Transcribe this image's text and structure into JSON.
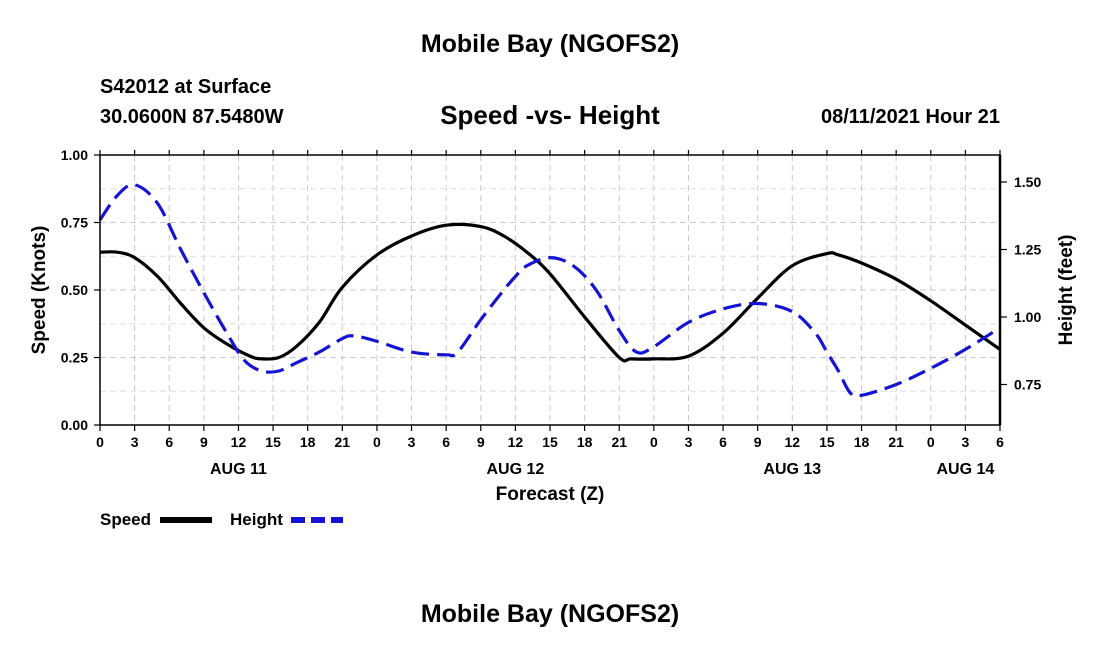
{
  "header": {
    "model_title": "Mobile Bay (NGOFS2)",
    "station": "S42012 at Surface",
    "coords": "30.0600N  87.5480W",
    "chart_title": "Speed -vs- Height",
    "datetime": "08/11/2021 Hour 21"
  },
  "footer": {
    "model_title": "Mobile Bay (NGOFS2)"
  },
  "chart_data": {
    "type": "line",
    "title": "Speed -vs- Height",
    "xlabel": "Forecast (Z)",
    "ylabel": "Speed (Knots)",
    "y2label": "Height (feet)",
    "xlim": [
      0,
      78
    ],
    "ylim": [
      0,
      1.0
    ],
    "y2lim": [
      0.6,
      1.6
    ],
    "x_ticks": [
      0,
      3,
      6,
      9,
      12,
      15,
      18,
      21,
      24,
      27,
      30,
      33,
      36,
      39,
      42,
      45,
      48,
      51,
      54,
      57,
      60,
      63,
      66,
      69,
      72,
      75,
      78
    ],
    "x_tick_labels": [
      "0",
      "3",
      "6",
      "9",
      "12",
      "15",
      "18",
      "21",
      "0",
      "3",
      "6",
      "9",
      "12",
      "15",
      "18",
      "21",
      "0",
      "3",
      "6",
      "9",
      "12",
      "15",
      "18",
      "21",
      "0",
      "3",
      "6"
    ],
    "y_ticks": [
      0,
      0.25,
      0.5,
      0.75,
      1.0
    ],
    "y_tick_labels": [
      "0.00",
      "0.25",
      "0.50",
      "0.75",
      "1.00"
    ],
    "y2_ticks": [
      0.75,
      1.0,
      1.25,
      1.5
    ],
    "y2_tick_labels": [
      "0.75",
      "1.00",
      "1.25",
      "1.50"
    ],
    "date_labels": [
      {
        "x": 12,
        "label": "AUG 11"
      },
      {
        "x": 36,
        "label": "AUG 12"
      },
      {
        "x": 60,
        "label": "AUG 13"
      },
      {
        "x": 75,
        "label": "AUG 14"
      }
    ],
    "grid": true,
    "legend_position": "bottom-left",
    "series": [
      {
        "name": "Speed",
        "axis": "left",
        "color": "#000000",
        "dash": "solid",
        "x": [
          0,
          1.5,
          3,
          5,
          7,
          9,
          11,
          13,
          14,
          15.5,
          17,
          19,
          21,
          24,
          27,
          30,
          33,
          35,
          37,
          39,
          42,
          45,
          46,
          48,
          51,
          54,
          57,
          60,
          63,
          64,
          66,
          69,
          72,
          75,
          78
        ],
        "y": [
          0.64,
          0.64,
          0.62,
          0.55,
          0.45,
          0.36,
          0.3,
          0.255,
          0.245,
          0.25,
          0.29,
          0.38,
          0.51,
          0.63,
          0.7,
          0.74,
          0.735,
          0.7,
          0.64,
          0.56,
          0.4,
          0.25,
          0.245,
          0.245,
          0.255,
          0.34,
          0.47,
          0.59,
          0.635,
          0.63,
          0.6,
          0.54,
          0.46,
          0.37,
          0.28
        ]
      },
      {
        "name": "Height",
        "axis": "right",
        "color": "#1414d2",
        "dash": "dashed",
        "x": [
          0,
          1.5,
          3,
          5,
          7,
          9,
          11,
          12.5,
          14,
          15.5,
          17,
          19,
          21,
          22,
          24,
          27,
          30,
          31,
          33,
          35,
          36,
          37,
          39,
          41,
          43,
          45,
          46.5,
          48,
          51,
          54,
          57,
          60,
          62,
          63,
          64,
          65,
          66,
          69,
          72,
          75,
          78
        ],
        "y": [
          1.36,
          1.45,
          1.49,
          1.42,
          1.25,
          1.09,
          0.94,
          0.84,
          0.8,
          0.8,
          0.83,
          0.87,
          0.92,
          0.93,
          0.91,
          0.87,
          0.86,
          0.87,
          0.99,
          1.1,
          1.15,
          1.19,
          1.22,
          1.19,
          1.1,
          0.95,
          0.87,
          0.89,
          0.98,
          1.03,
          1.05,
          1.02,
          0.94,
          0.87,
          0.8,
          0.72,
          0.71,
          0.75,
          0.81,
          0.88,
          0.96
        ]
      }
    ]
  }
}
